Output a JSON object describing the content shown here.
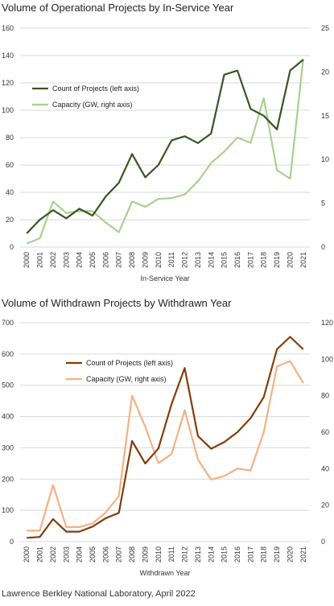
{
  "footer": "Lawrence Berkley National Laboratory, April 2022",
  "chart_data": [
    {
      "type": "line",
      "title": "Volume of Operational Projects by In-Service Year",
      "xlabel": "In-Service Year",
      "categories": [
        "2000",
        "2001",
        "2002",
        "2003",
        "2004",
        "2005",
        "2006",
        "2007",
        "2008",
        "2009",
        "2010",
        "2011",
        "2012",
        "2013",
        "2014",
        "2015",
        "2016",
        "2017",
        "2018",
        "2019",
        "2020",
        "2021"
      ],
      "left_axis": {
        "min": 0,
        "max": 160,
        "ticks": [
          0,
          20,
          40,
          60,
          80,
          100,
          120,
          140,
          160
        ]
      },
      "right_axis": {
        "min": 0,
        "max": 25,
        "ticks": [
          0,
          5,
          10,
          15,
          20,
          25
        ]
      },
      "grid": true,
      "legend_position": "center-left",
      "series": [
        {
          "name": "Count of Projects (left axis)",
          "axis": "left",
          "color": "#375623",
          "values": [
            10,
            20,
            27,
            21,
            28,
            23,
            37,
            47,
            68,
            51,
            60,
            78,
            81,
            76,
            83,
            126,
            129,
            101,
            96,
            86,
            129,
            137
          ]
        },
        {
          "name": "Capacity (GW, right axis)",
          "axis": "right",
          "color": "#a9d18e",
          "values": [
            0.4,
            1,
            5.2,
            3.9,
            4.1,
            4.1,
            2.8,
            1.7,
            5.2,
            4.6,
            5.5,
            5.6,
            6,
            7.5,
            9.6,
            10.9,
            12.5,
            11.9,
            17,
            8.8,
            7.8,
            21.5
          ]
        }
      ]
    },
    {
      "type": "line",
      "title": "Volume of Withdrawn Projects by Withdrawn Year",
      "xlabel": "Withdrawn Year",
      "categories": [
        "2000",
        "2001",
        "2002",
        "2003",
        "2004",
        "2005",
        "2006",
        "2007",
        "2008",
        "2009",
        "2010",
        "2011",
        "2012",
        "2013",
        "2014",
        "2015",
        "2016",
        "2017",
        "2018",
        "2019",
        "2020",
        "2021"
      ],
      "left_axis": {
        "min": 0,
        "max": 700,
        "ticks": [
          0,
          100,
          200,
          300,
          400,
          500,
          600,
          700
        ]
      },
      "right_axis": {
        "min": 0,
        "max": 120,
        "ticks": [
          0,
          20,
          40,
          60,
          80,
          100,
          120
        ]
      },
      "grid": true,
      "legend_position": "top-center",
      "series": [
        {
          "name": "Count of Projects (left axis)",
          "axis": "left",
          "color": "#843c0c",
          "values": [
            12,
            15,
            72,
            32,
            32,
            48,
            75,
            92,
            322,
            250,
            298,
            440,
            555,
            338,
            297,
            318,
            350,
            395,
            462,
            615,
            655,
            615
          ]
        },
        {
          "name": "Capacity (GW, right axis)",
          "axis": "right",
          "color": "#f4b183",
          "values": [
            6,
            6,
            31,
            8,
            8,
            10,
            16,
            25,
            80,
            63,
            43,
            48,
            72,
            45,
            34,
            36,
            40,
            39,
            60,
            96,
            99,
            87
          ]
        }
      ]
    }
  ]
}
